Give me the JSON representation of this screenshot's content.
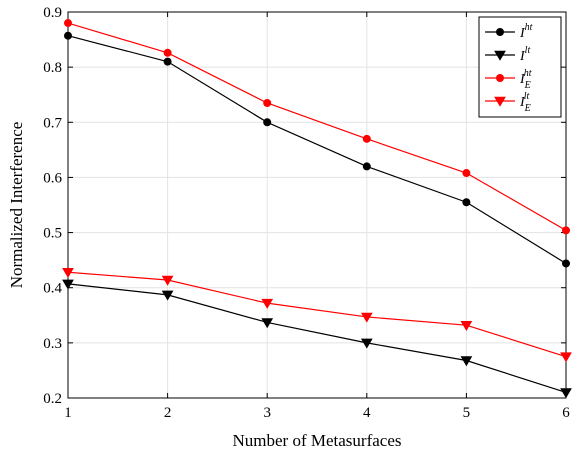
{
  "chart_data": {
    "type": "line",
    "xlabel": "Number of Metasurfaces",
    "ylabel": "Normalized Interference",
    "x": [
      1,
      2,
      3,
      4,
      5,
      6
    ],
    "xlim": [
      1,
      6
    ],
    "ylim": [
      0.2,
      0.9
    ],
    "xticks": [
      "1",
      "2",
      "3",
      "4",
      "5",
      "6"
    ],
    "yticks": [
      "0.2",
      "0.3",
      "0.4",
      "0.5",
      "0.6",
      "0.7",
      "0.8",
      "0.9"
    ],
    "grid": true,
    "legend_position": "top-right",
    "series": [
      {
        "name": "I^ht",
        "label_base": "I",
        "label_sup": "ht",
        "label_sub": "",
        "color": "#000000",
        "marker": "circle",
        "values": [
          0.857,
          0.81,
          0.7,
          0.62,
          0.555,
          0.444
        ]
      },
      {
        "name": "I^lt",
        "label_base": "I",
        "label_sup": "lt",
        "label_sub": "",
        "color": "#000000",
        "marker": "triangle-down",
        "values": [
          0.407,
          0.387,
          0.337,
          0.3,
          0.268,
          0.21
        ]
      },
      {
        "name": "I_E^ht",
        "label_base": "I",
        "label_sup": "ht",
        "label_sub": "E",
        "color": "#ff0000",
        "marker": "circle",
        "values": [
          0.88,
          0.826,
          0.735,
          0.67,
          0.608,
          0.504
        ]
      },
      {
        "name": "I_E^lt",
        "label_base": "I",
        "label_sup": "lt",
        "label_sub": "E",
        "color": "#ff0000",
        "marker": "triangle-down",
        "values": [
          0.428,
          0.414,
          0.372,
          0.347,
          0.332,
          0.275
        ]
      }
    ]
  }
}
